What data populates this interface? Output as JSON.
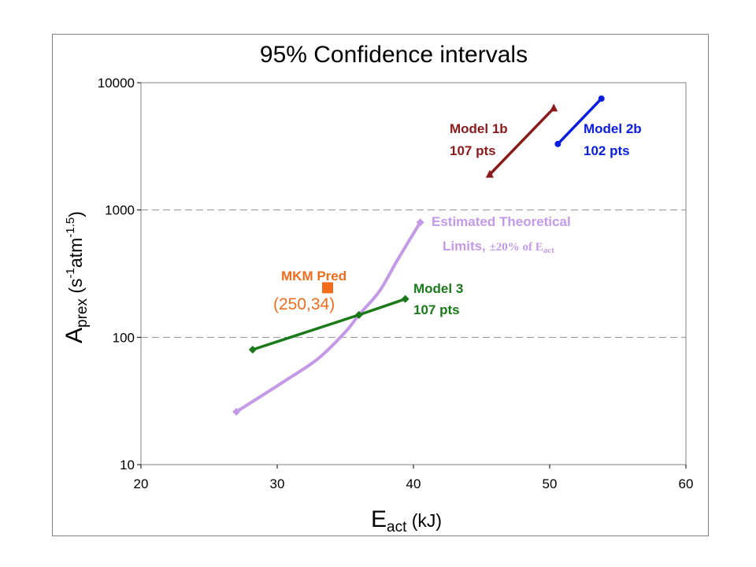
{
  "chart_data": {
    "type": "line",
    "title": "95% Confidence intervals",
    "xlabel": {
      "main": "E",
      "sub": "act",
      "unit": " (kJ)"
    },
    "ylabel": {
      "main": "A",
      "sub": "prex",
      "unit_open": " (s",
      "sup1": "-1",
      "unit_mid": "atm",
      "sup2": "-1.5",
      "unit_close": ")"
    },
    "xlim": [
      20,
      60
    ],
    "ylim": [
      10,
      10000
    ],
    "yscale": "log",
    "xticks": [
      "20",
      "30",
      "40",
      "50",
      "60"
    ],
    "yticks": [
      "10",
      "100",
      "1000",
      "10000"
    ],
    "grid": "dashed horizontal at 100 and 1000",
    "legend": "none",
    "series": [
      {
        "name": "Model 1b",
        "color": "#8b1a1a",
        "marker": "triangle",
        "points": [
          [
            45.6,
            1900
          ],
          [
            50.3,
            6300
          ]
        ]
      },
      {
        "name": "Model 2b",
        "color": "#0a1ee0",
        "marker": "circle",
        "points": [
          [
            50.6,
            3300
          ],
          [
            53.8,
            7500
          ]
        ]
      },
      {
        "name": "Model 3",
        "color": "#1a7a1a",
        "marker": "diamond",
        "points": [
          [
            28.2,
            80
          ],
          [
            36.0,
            150
          ],
          [
            39.4,
            200
          ]
        ]
      },
      {
        "name": "Estimated Theoretical Limits",
        "color": "#c49ae8",
        "marker": "diamond",
        "smooth": true,
        "points": [
          [
            27.0,
            26
          ],
          [
            30.5,
            45
          ],
          [
            33.0,
            68
          ],
          [
            35.0,
            110
          ],
          [
            36.0,
            150
          ],
          [
            37.5,
            230
          ],
          [
            38.8,
            400
          ],
          [
            40.5,
            800
          ]
        ]
      }
    ],
    "single_points": [
      {
        "name": "MKM Pred",
        "color": "#f36c1c",
        "marker": "square",
        "x": 33.7,
        "y": 245
      }
    ],
    "annotations": {
      "model1b": {
        "line1": "Model 1b",
        "line2": "107 pts",
        "color": "#8b1a1a"
      },
      "model2b": {
        "line1": "Model 2b",
        "line2": "102 pts",
        "color": "#0a1ee0"
      },
      "model3": {
        "line1": "Model 3",
        "line2": "107 pts",
        "color": "#1a7a1a"
      },
      "theory": {
        "line1": "Estimated Theoretical",
        "line2": "Limits, ",
        "line2_serif": "±20%  of E",
        "line2_sub": "act",
        "color": "#c49ae8"
      },
      "mkm": {
        "line1": "MKM Pred",
        "line2": "(250,34)",
        "color": "#f36c1c"
      }
    }
  }
}
